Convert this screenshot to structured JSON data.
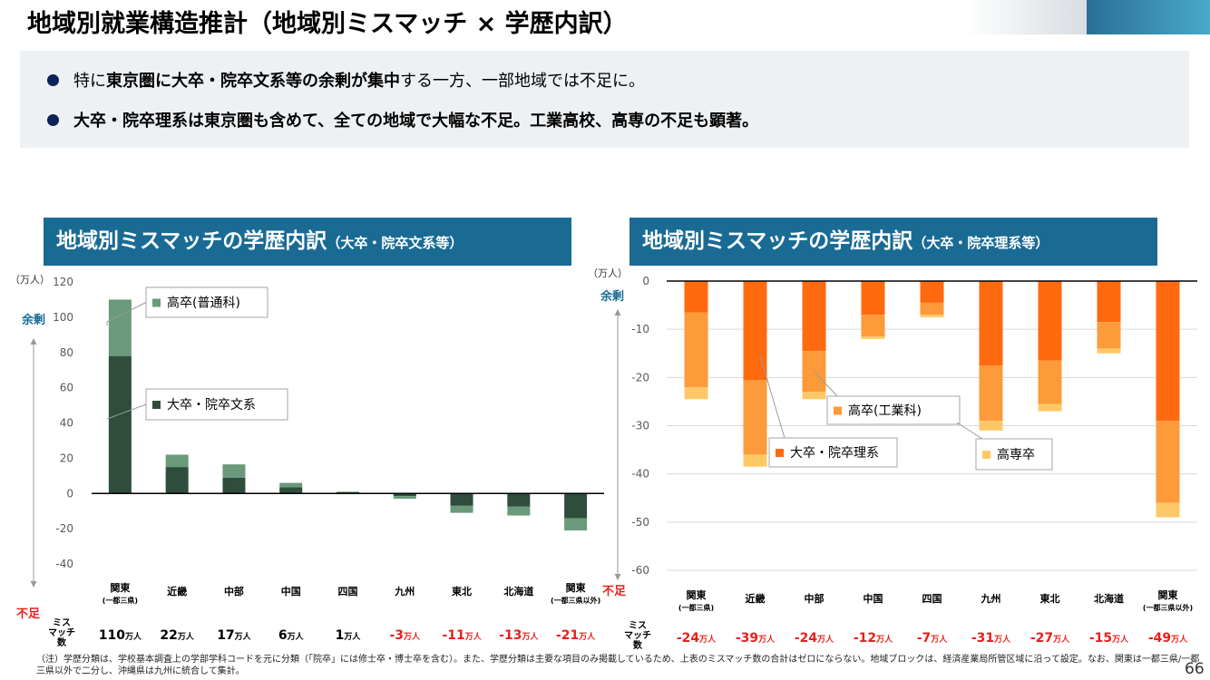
{
  "page": {
    "title": "地域別就業構造推計（地域別ミスマッチ × 学歴内訳）",
    "page_number": "66",
    "footnote": "（注）学歴分類は、学校基本調査上の学部学科コードを元に分類（「院卒」には修士卒・博士卒を含む）。また、学歴分類は主要な項目のみ掲載しているため、上表のミスマッチ数の合計はゼロにならない。地域ブロックは、経済産業局所管区域に沿って設定。なお、関東は一都三県/一都三県以外で二分し、沖縄県は九州に統合して集計。"
  },
  "summary": {
    "bullet1": {
      "plain1": "特に",
      "bold": "東京圏に大卒・院卒文系等の余剰が集中",
      "plain2": "する一方、一部地域では不足に。"
    },
    "bullet2": {
      "bold": "大卒・院卒理系は東京圏も含めて、全ての地域で大幅な不足。工業高校、高専の不足も顕著。"
    }
  },
  "colors": {
    "banner": "#1a6b94",
    "surplus_label": "#1a6b94",
    "shortage_label": "#e8201b",
    "negative_value": "#e8201b"
  },
  "chart_data": [
    {
      "type": "bar",
      "stacked": true,
      "title": "地域別ミスマッチの学歴内訳",
      "subtitle": "（大卒・院卒文系等）",
      "unit_label": "（万人）",
      "ylim": [
        -40,
        120
      ],
      "yticks": [
        -40,
        -20,
        0,
        20,
        40,
        60,
        80,
        100,
        120
      ],
      "grid": false,
      "surplus_label": "余剰",
      "shortage_label": "不足",
      "mismatch_row_label": "ミス\nマッチ\n数",
      "categories": [
        {
          "name": "関東",
          "sub": "(一都三県)"
        },
        {
          "name": "近畿",
          "sub": ""
        },
        {
          "name": "中部",
          "sub": ""
        },
        {
          "name": "中国",
          "sub": ""
        },
        {
          "name": "四国",
          "sub": ""
        },
        {
          "name": "九州",
          "sub": ""
        },
        {
          "name": "東北",
          "sub": ""
        },
        {
          "name": "北海道",
          "sub": ""
        },
        {
          "name": "関東",
          "sub": "(一都三県以外)"
        }
      ],
      "series": [
        {
          "name": "大卒・院卒文系",
          "color": "#2f4d3c",
          "values": [
            78,
            15,
            9,
            3.5,
            0.8,
            -1.5,
            -7,
            -7.5,
            -14
          ]
        },
        {
          "name": "高卒(普通科)",
          "color": "#6a9a79",
          "values": [
            32,
            7,
            7.5,
            2.5,
            0.2,
            -1.5,
            -4,
            -5,
            -7
          ]
        }
      ],
      "mismatch_totals": [
        {
          "num": "110",
          "unit": "万人"
        },
        {
          "num": "22",
          "unit": "万人"
        },
        {
          "num": "17",
          "unit": "万人"
        },
        {
          "num": "6",
          "unit": "万人"
        },
        {
          "num": "1",
          "unit": "万人"
        },
        {
          "num": "-3",
          "unit": "万人"
        },
        {
          "num": "-11",
          "unit": "万人"
        },
        {
          "num": "-13",
          "unit": "万人"
        },
        {
          "num": "-21",
          "unit": "万人"
        }
      ]
    },
    {
      "type": "bar",
      "stacked": true,
      "title": "地域別ミスマッチの学歴内訳",
      "subtitle": "（大卒・院卒理系等）",
      "unit_label": "（万人）",
      "ylim": [
        -60,
        0
      ],
      "yticks": [
        -60,
        -50,
        -40,
        -30,
        -20,
        -10,
        0
      ],
      "grid": true,
      "surplus_label": "余剰",
      "shortage_label": "不足",
      "mismatch_row_label": "ミス\nマッチ\n数",
      "categories": [
        {
          "name": "関東",
          "sub": "(一都三県)"
        },
        {
          "name": "近畿",
          "sub": ""
        },
        {
          "name": "中部",
          "sub": ""
        },
        {
          "name": "中国",
          "sub": ""
        },
        {
          "name": "四国",
          "sub": ""
        },
        {
          "name": "九州",
          "sub": ""
        },
        {
          "name": "東北",
          "sub": ""
        },
        {
          "name": "北海道",
          "sub": ""
        },
        {
          "name": "関東",
          "sub": "(一都三県以外)"
        }
      ],
      "series": [
        {
          "name": "大卒・院卒理系",
          "color": "#ff6a0f",
          "values": [
            -6.5,
            -20.5,
            -14.5,
            -7,
            -4.5,
            -17.5,
            -16.5,
            -8.5,
            -29
          ]
        },
        {
          "name": "高卒(工業科)",
          "color": "#fd9a3a",
          "values": [
            -15.5,
            -15.5,
            -8.5,
            -4.5,
            -2.5,
            -11.5,
            -9,
            -5.5,
            -17
          ]
        },
        {
          "name": "高専卒",
          "color": "#ffc866",
          "values": [
            -2.5,
            -2.5,
            -1.5,
            -0.5,
            -0.5,
            -2,
            -1.5,
            -1,
            -3
          ]
        }
      ],
      "mismatch_totals": [
        {
          "num": "-24",
          "unit": "万人"
        },
        {
          "num": "-39",
          "unit": "万人"
        },
        {
          "num": "-24",
          "unit": "万人"
        },
        {
          "num": "-12",
          "unit": "万人"
        },
        {
          "num": "-7",
          "unit": "万人"
        },
        {
          "num": "-31",
          "unit": "万人"
        },
        {
          "num": "-27",
          "unit": "万人"
        },
        {
          "num": "-15",
          "unit": "万人"
        },
        {
          "num": "-49",
          "unit": "万人"
        }
      ]
    }
  ]
}
